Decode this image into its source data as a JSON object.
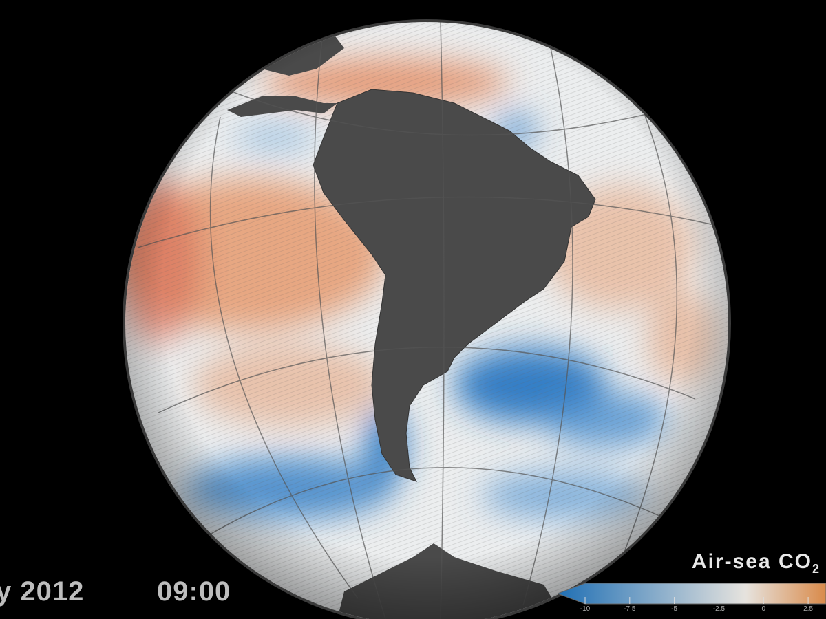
{
  "timestamp": {
    "date": "y  2012",
    "time": "09:00"
  },
  "legend": {
    "title": "Air-sea CO",
    "title_subscript": "2",
    "ticks": [
      "-10",
      "-7.5",
      "-5",
      "-2.5",
      "0",
      "2.5"
    ],
    "tick_values": [
      -10,
      -7.5,
      -5,
      -2.5,
      0,
      2.5
    ],
    "range": [
      -10,
      3.5
    ],
    "colors": {
      "negative": "#1f6fb4",
      "neutral": "#e6e3de",
      "positive": "#d98a4a"
    }
  },
  "globe": {
    "land_color": "#4a4a4a",
    "ocean_color": "#eef0f2",
    "source_color": "#e08a5c",
    "sink_color": "#2f78c0"
  }
}
